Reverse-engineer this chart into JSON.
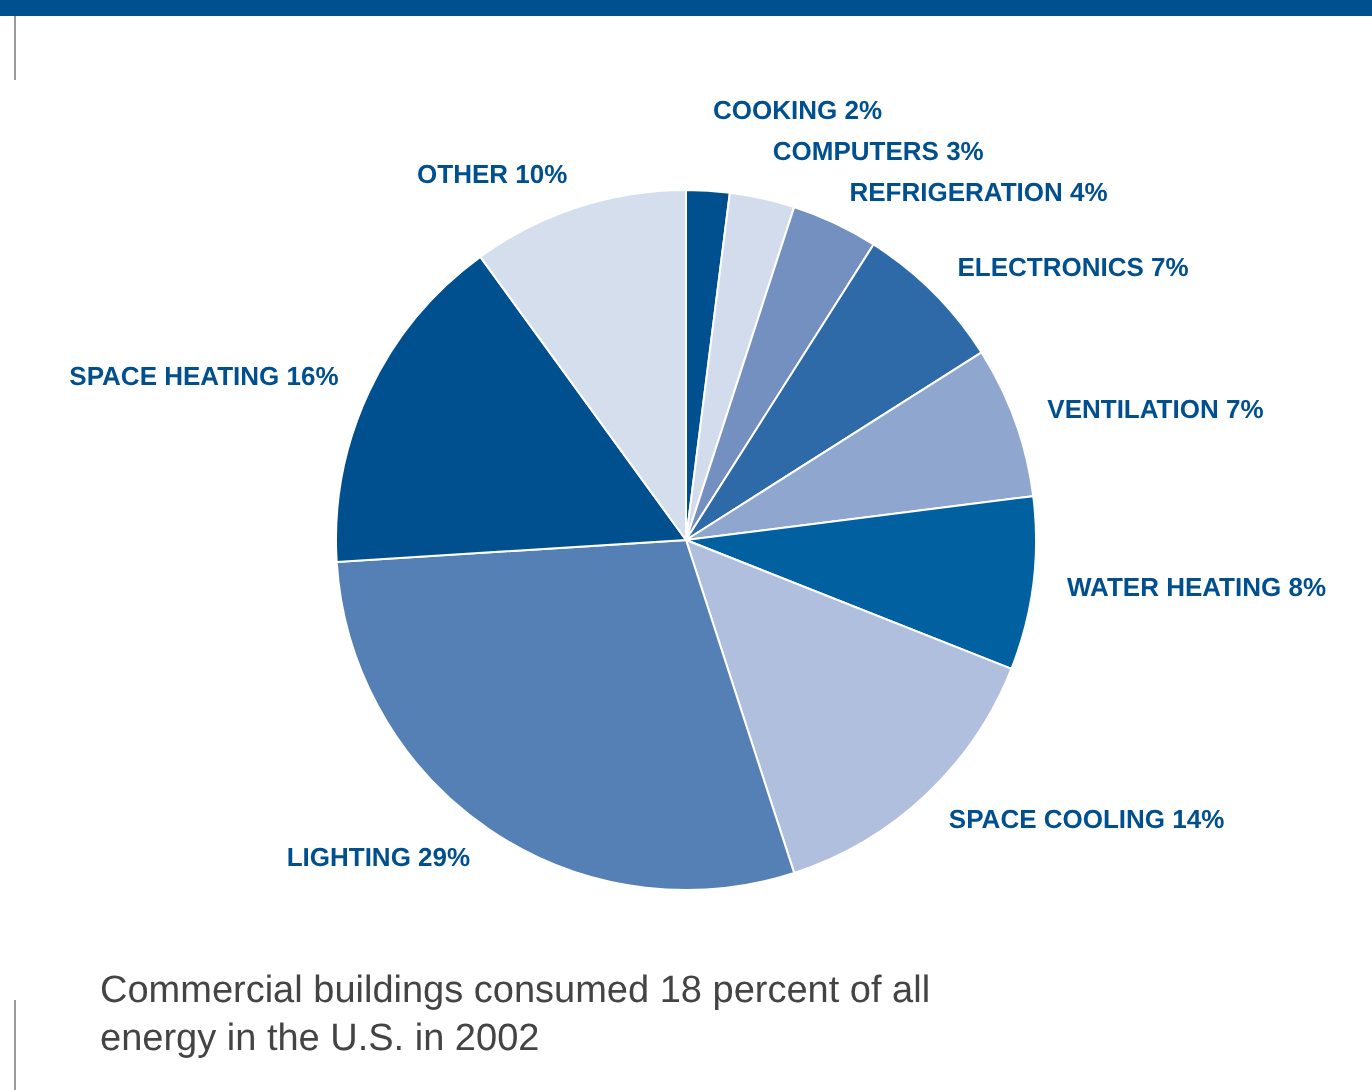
{
  "chart_data": {
    "type": "pie",
    "categories": [
      "COOKING",
      "COMPUTERS",
      "REFRIGERATION",
      "ELECTRONICS",
      "VENTILATION",
      "WATER HEATING",
      "SPACE COOLING",
      "LIGHTING",
      "SPACE HEATING",
      "OTHER"
    ],
    "values": [
      2,
      3,
      4,
      7,
      7,
      8,
      14,
      29,
      16,
      10
    ],
    "value_labels": [
      "2%",
      "3%",
      "4%",
      "7%",
      "7%",
      "8%",
      "14%",
      "29%",
      "16%",
      "10%"
    ],
    "colors": [
      "#00508f",
      "#d3dcec",
      "#7390c0",
      "#2e6aa8",
      "#8fa6cf",
      "#0060a0",
      "#b0bfdd",
      "#5580b5",
      "#00508f",
      "#d5deec"
    ],
    "annotations": [
      "Commercial buildings consumed 18 percent of all energy in the U.S. in 2002"
    ]
  }
}
